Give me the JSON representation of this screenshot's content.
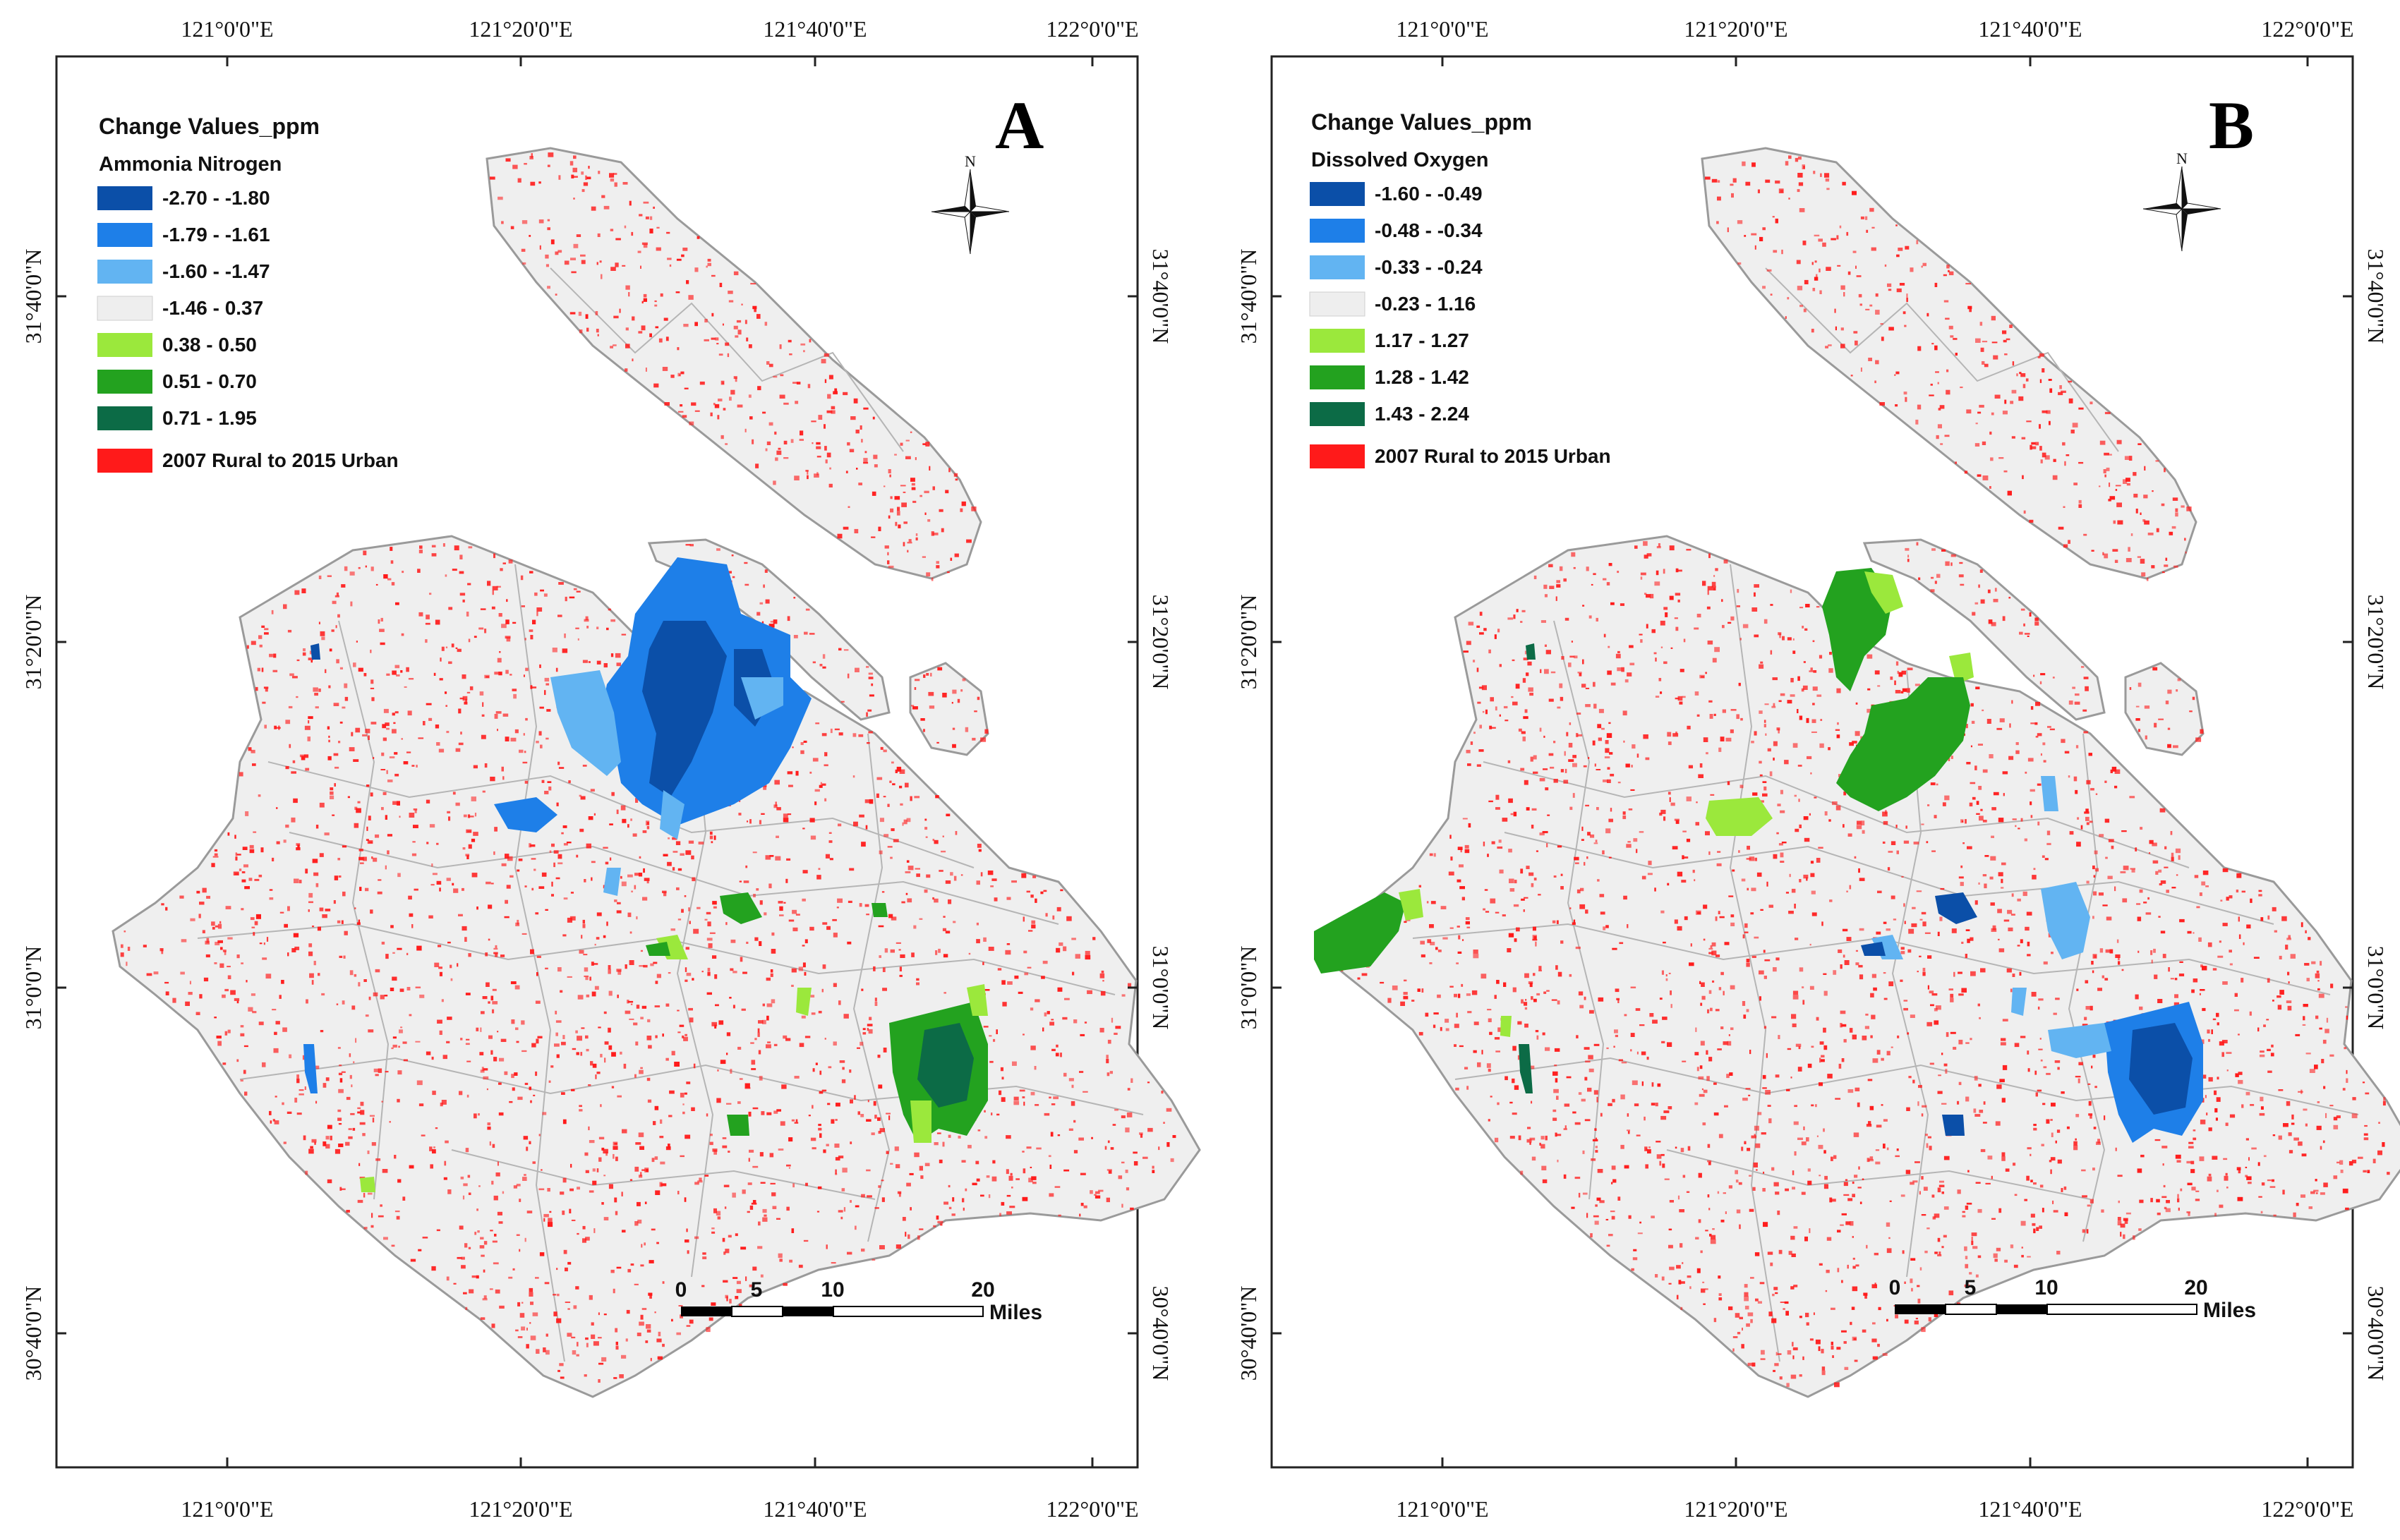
{
  "panels": [
    {
      "label": "A",
      "legend": {
        "title": "Change Values_ppm",
        "subtitle": "Ammonia Nitrogen",
        "classes": [
          {
            "label": "-2.70 - -1.80",
            "color": "#0b4fa8"
          },
          {
            "label": "-1.79 - -1.61",
            "color": "#1e7fe8"
          },
          {
            "label": "-1.60 - -1.47",
            "color": "#62b4f2"
          },
          {
            "label": "-1.46 - 0.37",
            "color": "#eeeeee"
          },
          {
            "label": "0.38 - 0.50",
            "color": "#9be83c"
          },
          {
            "label": "0.51 - 0.70",
            "color": "#23a21f"
          },
          {
            "label": "0.71 - 1.95",
            "color": "#0c6b46"
          }
        ],
        "urban": {
          "label": "2007 Rural to 2015 Urban",
          "color": "#ff1a1a"
        }
      },
      "top_ticks": [
        "121°0'0\"E",
        "121°20'0\"E",
        "121°40'0\"E",
        "122°0'0\"E"
      ],
      "bottom_ticks": [
        "121°0'0\"E",
        "121°20'0\"E",
        "121°40'0\"E",
        "122°0'0\"E"
      ],
      "left_ticks": [
        "31°40'0\"N",
        "31°20'0\"N",
        "31°0'0\"N",
        "30°40'0\"N"
      ],
      "right_ticks": [
        "31°40'0\"N",
        "31°20'0\"N",
        "31°0'0\"N",
        "30°40'0\"N"
      ],
      "scale": {
        "labels": [
          "0",
          "5",
          "10",
          "20"
        ],
        "unit": "Miles"
      },
      "north": "N"
    },
    {
      "label": "B",
      "legend": {
        "title": "Change Values_ppm",
        "subtitle": "Dissolved Oxygen",
        "classes": [
          {
            "label": "-1.60 - -0.49",
            "color": "#0b4fa8"
          },
          {
            "label": "-0.48 - -0.34",
            "color": "#1e7fe8"
          },
          {
            "label": "-0.33 - -0.24",
            "color": "#62b4f2"
          },
          {
            "label": "-0.23 - 1.16",
            "color": "#eeeeee"
          },
          {
            "label": "1.17 - 1.27",
            "color": "#9be83c"
          },
          {
            "label": "1.28 - 1.42",
            "color": "#23a21f"
          },
          {
            "label": "1.43 - 2.24",
            "color": "#0c6b46"
          }
        ],
        "urban": {
          "label": "2007 Rural to 2015 Urban",
          "color": "#ff1a1a"
        }
      },
      "top_ticks": [
        "121°0'0\"E",
        "121°20'0\"E",
        "121°40'0\"E",
        "122°0'0\"E"
      ],
      "bottom_ticks": [
        "121°0'0\"E",
        "121°20'0\"E",
        "121°40'0\"E",
        "122°0'0\"E"
      ],
      "left_ticks": [
        "31°40'0\"N",
        "31°20'0\"N",
        "31°0'0\"N",
        "30°40'0\"N"
      ],
      "right_ticks": [
        "31°40'0\"N",
        "31°20'0\"N",
        "31°0'0\"N",
        "30°40'0\"N"
      ],
      "scale": {
        "labels": [
          "0",
          "5",
          "10",
          "20"
        ],
        "unit": "Miles"
      },
      "north": "N"
    }
  ],
  "colors": {
    "land": "#efefef",
    "border": "#9a9a9a",
    "urban": "#ff1a1a"
  }
}
